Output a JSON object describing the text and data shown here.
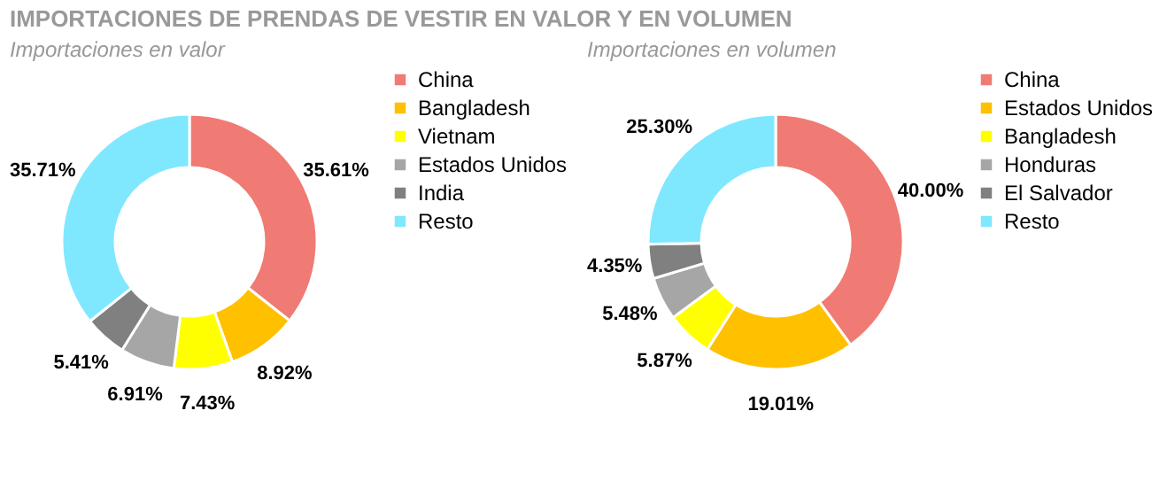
{
  "chart_data": [
    {
      "type": "donut",
      "title": "IMPORTACIONES DE PRENDAS DE VESTIR EN VALOR Y EN VOLUMEN",
      "subtitle": "Importaciones en valor",
      "categories": [
        "China",
        "Bangladesh",
        "Vietnam",
        "Estados Unidos",
        "India",
        "Resto"
      ],
      "values": [
        35.61,
        8.92,
        7.43,
        6.91,
        5.41,
        35.71
      ],
      "colors": [
        "#f07b74",
        "#ffc000",
        "#ffff00",
        "#a6a6a6",
        "#808080",
        "#7fe8ff"
      ],
      "value_labels": [
        "35.61%",
        "8.92%",
        "7.43%",
        "6.91%",
        "5.41%",
        "35.71%"
      ],
      "legend": "right"
    },
    {
      "type": "donut",
      "subtitle": "Importaciones en volumen",
      "categories": [
        "China",
        "Estados Unidos",
        "Bangladesh",
        "Honduras",
        "El Salvador",
        "Resto"
      ],
      "values": [
        40.0,
        19.01,
        5.87,
        5.48,
        4.35,
        25.3
      ],
      "colors": [
        "#f07b74",
        "#ffc000",
        "#ffff00",
        "#a6a6a6",
        "#808080",
        "#7fe8ff"
      ],
      "value_labels": [
        "40.00%",
        "19.01%",
        "5.87%",
        "5.48%",
        "4.35%",
        "25.30%"
      ],
      "legend": "right"
    }
  ]
}
